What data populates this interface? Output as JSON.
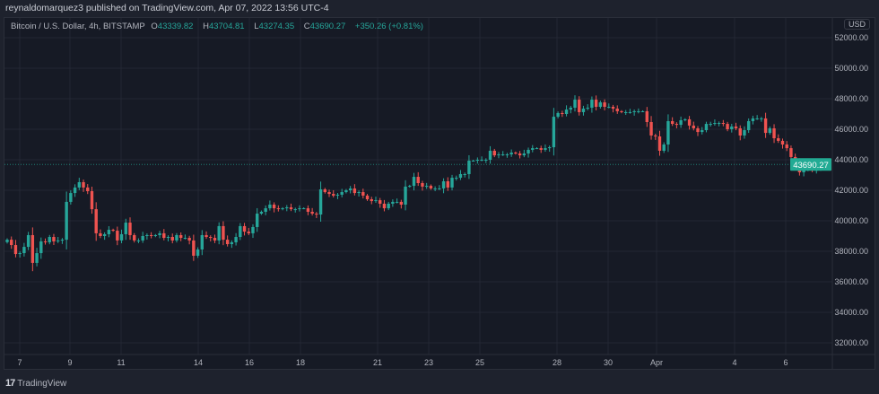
{
  "publisher_line": "reynaldomarquez3 published on TradingView.com, Apr 07, 2022 13:56 UTC-4",
  "legend": {
    "symbol": "Bitcoin / U.S. Dollar, 4h, BITSTAMP",
    "open_label": "O",
    "open": "43339.82",
    "high_label": "H",
    "high": "43704.81",
    "low_label": "L",
    "low": "43274.35",
    "close_label": "C",
    "close": "43690.27",
    "change": "+350.26 (+0.81%)"
  },
  "currency": "USD",
  "footer": {
    "logo_mark": "17",
    "brand": "TradingView"
  },
  "colors": {
    "up": "#26a69a",
    "down": "#ef5350",
    "background": "#161a25",
    "grid": "#232733",
    "last_price": "#22ab94"
  },
  "chart_data": {
    "type": "candlestick",
    "interval": "4h",
    "ylim": [
      31000,
      53000
    ],
    "y_ticks": [
      "32000.00",
      "34000.00",
      "36000.00",
      "38000.00",
      "40000.00",
      "42000.00",
      "44000.00",
      "46000.00",
      "48000.00",
      "50000.00",
      "52000.00"
    ],
    "x_ticks": [
      "7",
      "9",
      "11",
      "14",
      "16",
      "18",
      "21",
      "23",
      "25",
      "28",
      "30",
      "Apr",
      "4",
      "6"
    ],
    "grid": true,
    "last_price": "43690.27",
    "first_open": 38600,
    "closes": [
      38760,
      38410,
      37820,
      37880,
      38290,
      39060,
      37240,
      37880,
      38650,
      38590,
      38940,
      38650,
      38710,
      38760,
      41240,
      41820,
      42180,
      42530,
      42180,
      41940,
      40760,
      39180,
      39000,
      39120,
      39410,
      39350,
      38710,
      39120,
      39880,
      39060,
      38710,
      38710,
      39000,
      39060,
      39000,
      39060,
      39180,
      38880,
      38940,
      38710,
      39060,
      38880,
      38880,
      38710,
      37710,
      38120,
      39060,
      38940,
      38880,
      38710,
      39650,
      38760,
      38470,
      38590,
      38940,
      39650,
      39290,
      39180,
      39590,
      40470,
      40590,
      40820,
      41060,
      40820,
      40760,
      40820,
      40880,
      40760,
      40760,
      40820,
      40820,
      40590,
      40470,
      40410,
      42060,
      41880,
      41760,
      41650,
      41710,
      41880,
      42000,
      42120,
      41820,
      41880,
      41650,
      41410,
      41290,
      41350,
      41120,
      40820,
      41120,
      41240,
      41240,
      41060,
      42240,
      42290,
      42880,
      42470,
      42240,
      42290,
      42120,
      42120,
      42120,
      42590,
      42180,
      42820,
      42820,
      43060,
      43060,
      43940,
      43940,
      44000,
      44000,
      44000,
      44590,
      44290,
      44350,
      44350,
      44350,
      44470,
      44410,
      44290,
      44410,
      44650,
      44760,
      44760,
      44650,
      44760,
      44820,
      46820,
      47060,
      47000,
      47290,
      47410,
      47940,
      47120,
      47350,
      47410,
      47940,
      47470,
      47760,
      47470,
      47470,
      47350,
      47180,
      47120,
      47120,
      47120,
      47180,
      47180,
      47180,
      46470,
      45590,
      45530,
      44590,
      45000,
      46530,
      46350,
      46290,
      46590,
      46650,
      46240,
      46060,
      45820,
      45940,
      46350,
      46350,
      46410,
      46410,
      46350,
      46000,
      46180,
      46060,
      45590,
      45940,
      46530,
      46710,
      46710,
      46710,
      45760,
      46060,
      45410,
      45240,
      45000,
      44760,
      44180,
      43760,
      43180,
      43410,
      43530,
      43290,
      43340,
      43690.27
    ]
  }
}
